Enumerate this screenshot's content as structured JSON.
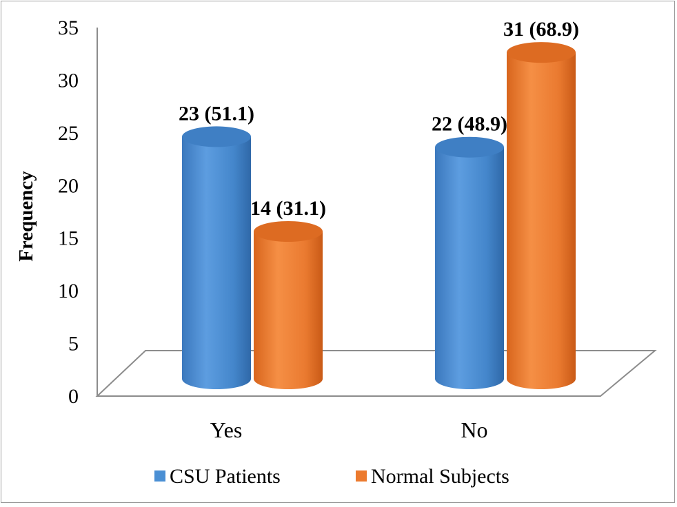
{
  "chart_data": {
    "type": "bar",
    "style": "3d-cylinder",
    "ylabel": "Frequency",
    "ylim": [
      0,
      35
    ],
    "yticks": [
      0,
      5,
      10,
      15,
      20,
      25,
      30,
      35
    ],
    "grid": false,
    "legend_position": "bottom",
    "categories": [
      "Yes",
      "No"
    ],
    "series": [
      {
        "name": "CSU Patients",
        "color": "#4a8fd4",
        "values": [
          23,
          22
        ],
        "labels": [
          "23 (51.1)",
          "22 (48.9)"
        ]
      },
      {
        "name": "Normal Subjects",
        "color": "#ec7a2e",
        "values": [
          14,
          31
        ],
        "labels": [
          "14 (31.1)",
          "31 (68.9)"
        ]
      }
    ]
  }
}
